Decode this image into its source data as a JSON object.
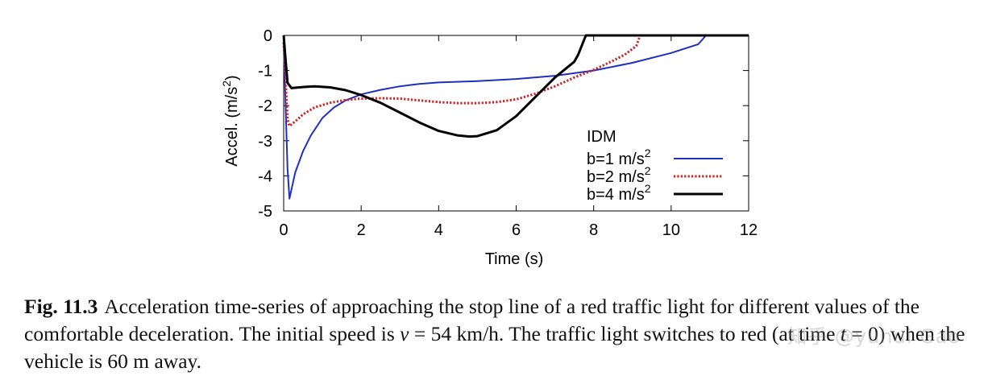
{
  "chart_data": {
    "type": "line",
    "xlabel": "Time (s)",
    "ylabel": "Accel. (m/s",
    "ylabel_sup": "2",
    "ylabel_close": ")",
    "xlim": [
      0,
      12
    ],
    "ylim": [
      -5,
      0
    ],
    "xticks": [
      0,
      2,
      4,
      6,
      8,
      10,
      12
    ],
    "yticks": [
      0,
      -1,
      -2,
      -3,
      -4,
      -5
    ],
    "grid": false,
    "legend_title": "IDM",
    "legend_position": "inside-right",
    "series": [
      {
        "name": "b=1 m/s",
        "name_sup": "2",
        "color": "#1f2fbf",
        "dash": "solid",
        "x": [
          0,
          0.05,
          0.1,
          0.15,
          0.2,
          0.3,
          0.4,
          0.5,
          0.7,
          1.0,
          1.3,
          1.6,
          2.0,
          2.5,
          3.0,
          3.5,
          4.0,
          5.0,
          6.0,
          7.0,
          8.0,
          9.0,
          10.0,
          10.7,
          10.9,
          12.0
        ],
        "y": [
          -0.2,
          -2.0,
          -3.8,
          -4.65,
          -4.4,
          -3.9,
          -3.6,
          -3.3,
          -2.85,
          -2.35,
          -2.05,
          -1.85,
          -1.68,
          -1.55,
          -1.45,
          -1.38,
          -1.34,
          -1.3,
          -1.24,
          -1.15,
          -1.0,
          -0.78,
          -0.5,
          -0.25,
          0.0,
          0.0
        ]
      },
      {
        "name": "b=2 m/s",
        "name_sup": "2",
        "color": "#cc2222",
        "dash": "dotted",
        "x": [
          0,
          0.05,
          0.1,
          0.15,
          0.3,
          0.5,
          0.8,
          1.2,
          1.6,
          2.0,
          2.5,
          3.0,
          3.5,
          4.0,
          4.5,
          5.0,
          5.5,
          6.0,
          6.5,
          7.0,
          7.5,
          8.0,
          8.5,
          8.8,
          9.1,
          9.2,
          12.0
        ],
        "y": [
          -0.2,
          -1.3,
          -2.4,
          -2.58,
          -2.45,
          -2.25,
          -2.05,
          -1.92,
          -1.84,
          -1.8,
          -1.79,
          -1.8,
          -1.85,
          -1.9,
          -1.93,
          -1.93,
          -1.9,
          -1.82,
          -1.66,
          -1.45,
          -1.2,
          -0.98,
          -0.72,
          -0.55,
          -0.3,
          0.0,
          0.0
        ]
      },
      {
        "name": "b=4 m/s",
        "name_sup": "2",
        "color": "#000000",
        "dash": "solid",
        "x": [
          0,
          0.05,
          0.1,
          0.2,
          0.5,
          0.8,
          1.2,
          1.6,
          2.0,
          2.5,
          3.0,
          3.5,
          4.0,
          4.5,
          4.8,
          5.0,
          5.5,
          6.0,
          6.5,
          7.0,
          7.5,
          7.6,
          7.8,
          12.0
        ],
        "y": [
          0.0,
          -0.7,
          -1.35,
          -1.5,
          -1.47,
          -1.45,
          -1.48,
          -1.56,
          -1.7,
          -1.92,
          -2.2,
          -2.48,
          -2.72,
          -2.85,
          -2.88,
          -2.87,
          -2.7,
          -2.3,
          -1.75,
          -1.2,
          -0.75,
          -0.55,
          0.0,
          0.0
        ]
      }
    ]
  },
  "caption": {
    "label": "Fig. 11.3",
    "text_1": "Acceleration time-series of approaching the stop line of a red traffic light for different values of the comfortable deceleration. The initial speed is ",
    "math_v": "v",
    "text_2": " = 54 km/h. The traffic light switches to red (at time ",
    "math_t": "t",
    "text_3": " = 0) when the vehicle is 60 m away."
  },
  "watermark": "知乎 @yuhui Gao"
}
